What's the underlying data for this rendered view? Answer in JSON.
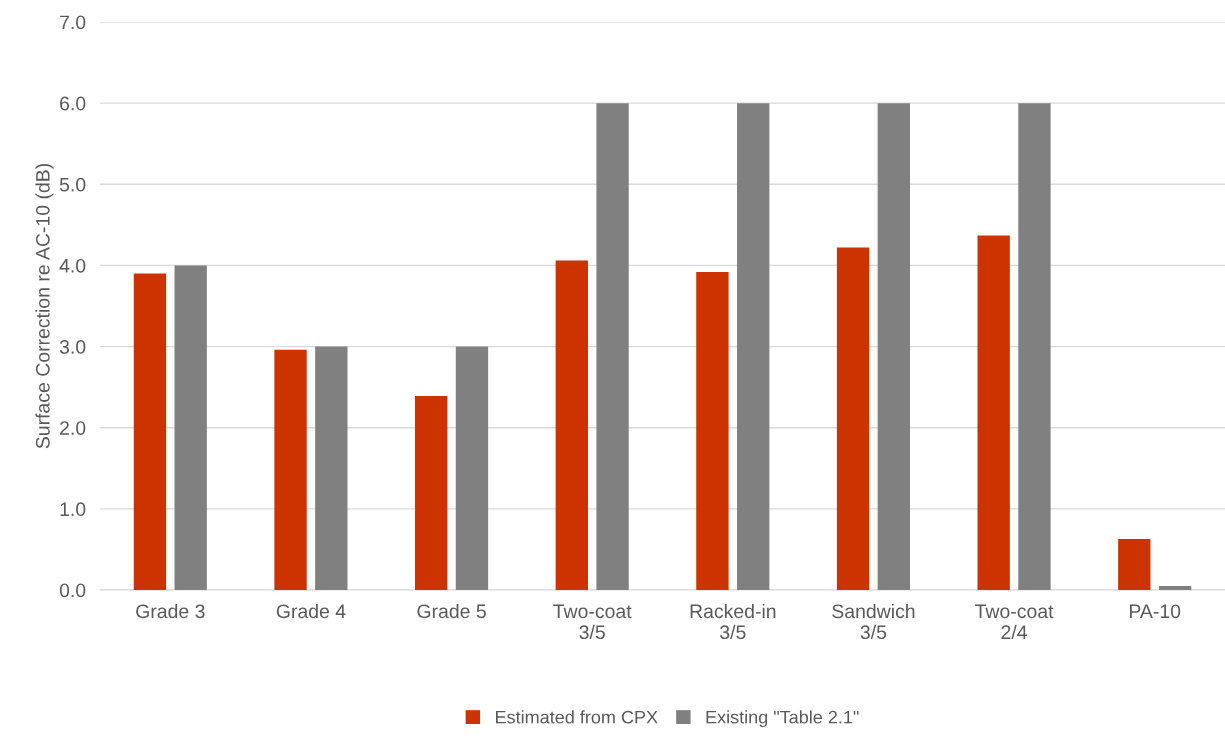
{
  "chart_data": {
    "type": "bar",
    "ylabel": "Surface Correction re AC-10 (dB)",
    "categories": [
      "Grade 3",
      "Grade 4",
      "Grade 5",
      "Two-coat\n3/5",
      "Racked-in\n3/5",
      "Sandwich\n3/5",
      "Two-coat\n2/4",
      "PA-10"
    ],
    "series": [
      {
        "name": "Estimated from CPX",
        "color": "#cc3300",
        "values": [
          3.9,
          2.96,
          2.39,
          4.06,
          3.92,
          4.22,
          4.37,
          0.63
        ]
      },
      {
        "name": "Existing \"Table 2.1\"",
        "color": "#808080",
        "values": [
          4.0,
          3.0,
          3.0,
          6.0,
          6.0,
          6.0,
          6.0,
          0.05
        ]
      }
    ],
    "ylim": [
      0,
      7
    ],
    "yticks": [
      {
        "value": 0,
        "label": "0.0"
      },
      {
        "value": 1,
        "label": "1.0"
      },
      {
        "value": 2,
        "label": "2.0"
      },
      {
        "value": 3,
        "label": "3.0"
      },
      {
        "value": 4,
        "label": "4.0"
      },
      {
        "value": 5,
        "label": "5.0"
      },
      {
        "value": 6,
        "label": "6.0"
      },
      {
        "value": 7,
        "label": "7.0"
      }
    ],
    "grid": "y",
    "legend": "bottom"
  }
}
